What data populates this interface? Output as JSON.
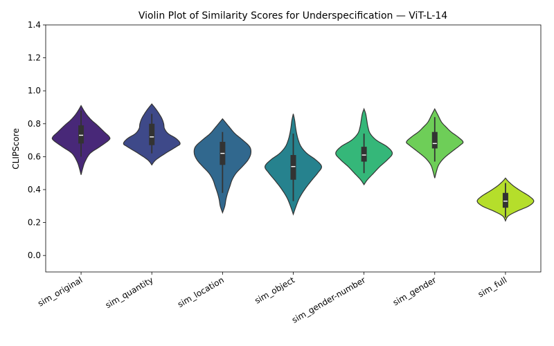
{
  "chart_data": {
    "type": "violin",
    "title": "Violin Plot of Similarity Scores for Underspecification — ViT-L-14",
    "xlabel": "",
    "ylabel": "CLIPScore",
    "ylim": [
      -0.1,
      1.4
    ],
    "yticks": [
      "0.0",
      "0.2",
      "0.4",
      "0.6",
      "0.8",
      "1.0",
      "1.2",
      "1.4"
    ],
    "grid": false,
    "categories": [
      "sim_original",
      "sim_quantity",
      "sim_location",
      "sim_object",
      "sim_gender-number",
      "sim_gender",
      "sim_full"
    ],
    "colors": [
      "#482878",
      "#3e4989",
      "#31688e",
      "#26828e",
      "#35b779",
      "#6ece58",
      "#b5de2b"
    ],
    "violins": [
      {
        "name": "sim_original",
        "min": 0.49,
        "max": 0.91,
        "median": 0.73,
        "q1": 0.68,
        "q3": 0.79,
        "whisker_low": 0.6,
        "whisker_high": 0.88,
        "density": [
          [
            0.49,
            0.0
          ],
          [
            0.53,
            0.06
          ],
          [
            0.57,
            0.14
          ],
          [
            0.62,
            0.32
          ],
          [
            0.66,
            0.66
          ],
          [
            0.7,
            0.98
          ],
          [
            0.72,
            1.0
          ],
          [
            0.75,
            0.82
          ],
          [
            0.79,
            0.58
          ],
          [
            0.82,
            0.38
          ],
          [
            0.85,
            0.22
          ],
          [
            0.88,
            0.1
          ],
          [
            0.91,
            0.0
          ]
        ]
      },
      {
        "name": "sim_quantity",
        "min": 0.55,
        "max": 0.92,
        "median": 0.72,
        "q1": 0.67,
        "q3": 0.8,
        "whisker_low": 0.62,
        "whisker_high": 0.86,
        "density": [
          [
            0.55,
            0.0
          ],
          [
            0.58,
            0.14
          ],
          [
            0.62,
            0.48
          ],
          [
            0.66,
            0.86
          ],
          [
            0.68,
            1.0
          ],
          [
            0.71,
            0.86
          ],
          [
            0.74,
            0.58
          ],
          [
            0.77,
            0.45
          ],
          [
            0.8,
            0.42
          ],
          [
            0.83,
            0.36
          ],
          [
            0.86,
            0.26
          ],
          [
            0.89,
            0.14
          ],
          [
            0.92,
            0.0
          ]
        ]
      },
      {
        "name": "sim_location",
        "min": 0.26,
        "max": 0.83,
        "median": 0.62,
        "q1": 0.55,
        "q3": 0.69,
        "whisker_low": 0.38,
        "whisker_high": 0.75,
        "density": [
          [
            0.26,
            0.0
          ],
          [
            0.3,
            0.08
          ],
          [
            0.34,
            0.12
          ],
          [
            0.38,
            0.18
          ],
          [
            0.42,
            0.26
          ],
          [
            0.46,
            0.34
          ],
          [
            0.5,
            0.48
          ],
          [
            0.54,
            0.7
          ],
          [
            0.58,
            0.9
          ],
          [
            0.62,
            1.0
          ],
          [
            0.66,
            0.96
          ],
          [
            0.7,
            0.72
          ],
          [
            0.74,
            0.44
          ],
          [
            0.78,
            0.24
          ],
          [
            0.83,
            0.0
          ]
        ]
      },
      {
        "name": "sim_object",
        "min": 0.25,
        "max": 0.86,
        "median": 0.54,
        "q1": 0.46,
        "q3": 0.61,
        "whisker_low": 0.33,
        "whisker_high": 0.74,
        "density": [
          [
            0.25,
            0.0
          ],
          [
            0.3,
            0.1
          ],
          [
            0.35,
            0.22
          ],
          [
            0.4,
            0.4
          ],
          [
            0.45,
            0.62
          ],
          [
            0.5,
            0.86
          ],
          [
            0.54,
            1.0
          ],
          [
            0.58,
            0.8
          ],
          [
            0.62,
            0.48
          ],
          [
            0.66,
            0.28
          ],
          [
            0.7,
            0.18
          ],
          [
            0.74,
            0.12
          ],
          [
            0.78,
            0.08
          ],
          [
            0.82,
            0.05
          ],
          [
            0.86,
            0.0
          ]
        ]
      },
      {
        "name": "sim_gender-number",
        "min": 0.43,
        "max": 0.89,
        "median": 0.61,
        "q1": 0.57,
        "q3": 0.66,
        "whisker_low": 0.5,
        "whisker_high": 0.74,
        "density": [
          [
            0.43,
            0.0
          ],
          [
            0.46,
            0.12
          ],
          [
            0.5,
            0.34
          ],
          [
            0.54,
            0.56
          ],
          [
            0.58,
            0.82
          ],
          [
            0.62,
            1.0
          ],
          [
            0.66,
            0.82
          ],
          [
            0.7,
            0.44
          ],
          [
            0.74,
            0.22
          ],
          [
            0.78,
            0.14
          ],
          [
            0.82,
            0.1
          ],
          [
            0.86,
            0.06
          ],
          [
            0.89,
            0.0
          ]
        ]
      },
      {
        "name": "sim_gender",
        "min": 0.47,
        "max": 0.89,
        "median": 0.68,
        "q1": 0.65,
        "q3": 0.75,
        "whisker_low": 0.57,
        "whisker_high": 0.84,
        "density": [
          [
            0.47,
            0.0
          ],
          [
            0.51,
            0.06
          ],
          [
            0.55,
            0.14
          ],
          [
            0.59,
            0.32
          ],
          [
            0.63,
            0.6
          ],
          [
            0.67,
            0.9
          ],
          [
            0.69,
            1.0
          ],
          [
            0.72,
            0.82
          ],
          [
            0.75,
            0.58
          ],
          [
            0.78,
            0.4
          ],
          [
            0.81,
            0.24
          ],
          [
            0.85,
            0.12
          ],
          [
            0.89,
            0.0
          ]
        ]
      },
      {
        "name": "sim_full",
        "min": 0.21,
        "max": 0.47,
        "median": 0.33,
        "q1": 0.29,
        "q3": 0.38,
        "whisker_low": 0.23,
        "whisker_high": 0.44,
        "density": [
          [
            0.21,
            0.0
          ],
          [
            0.24,
            0.1
          ],
          [
            0.27,
            0.42
          ],
          [
            0.3,
            0.82
          ],
          [
            0.33,
            1.0
          ],
          [
            0.36,
            0.84
          ],
          [
            0.39,
            0.56
          ],
          [
            0.42,
            0.3
          ],
          [
            0.45,
            0.1
          ],
          [
            0.47,
            0.0
          ]
        ]
      }
    ]
  }
}
